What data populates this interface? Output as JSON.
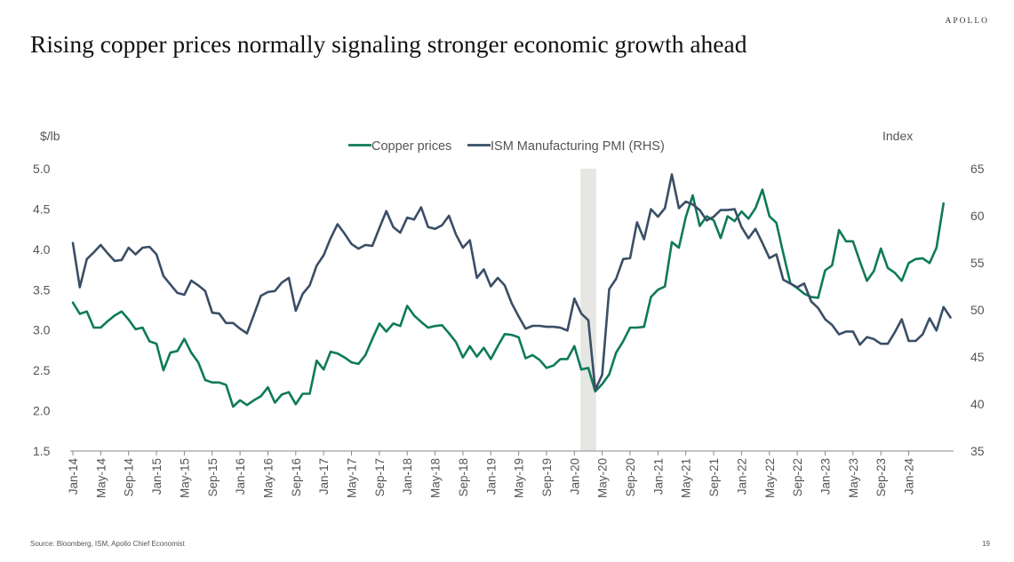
{
  "brand": "APOLLO",
  "title": "Rising copper prices normally signaling stronger economic growth ahead",
  "source": "Source: Bloomberg, ISM, Apollo Chief Economist",
  "page_number": "19",
  "colors": {
    "copper": "#0e7a5a",
    "pmi": "#3a4e66",
    "recession": "#e6e6e2"
  },
  "chart_data": {
    "type": "line",
    "title": "",
    "ylabel_left": "$/lb",
    "ylabel_right": "Index",
    "legend": [
      "Copper prices",
      "ISM Manufacturing PMI (RHS)"
    ],
    "legend_position": "top-center",
    "ylim_left": [
      1.5,
      5.0
    ],
    "yticks_left": [
      "1.5",
      "2.0",
      "2.5",
      "3.0",
      "3.5",
      "4.0",
      "4.5",
      "5.0"
    ],
    "ylim_right": [
      35,
      65
    ],
    "yticks_right": [
      "35",
      "40",
      "45",
      "50",
      "55",
      "60",
      "65"
    ],
    "xtick_labels": [
      "Jan-14",
      "May-14",
      "Sep-14",
      "Jan-15",
      "May-15",
      "Sep-15",
      "Jan-16",
      "May-16",
      "Sep-16",
      "Jan-17",
      "May-17",
      "Sep-17",
      "Jan-18",
      "May-18",
      "Sep-18",
      "Jan-19",
      "May-19",
      "Sep-19",
      "Jan-20",
      "May-20",
      "Sep-20",
      "Jan-21",
      "May-21",
      "Sep-21",
      "Jan-22",
      "May-22",
      "Sep-22",
      "Jan-23",
      "May-23",
      "Sep-23",
      "Jan-24"
    ],
    "shaded_period": [
      "2020-02",
      "2020-04"
    ],
    "x_start": "2014-01",
    "grid": false,
    "series": [
      {
        "name": "Copper prices",
        "axis": "left",
        "values": [
          3.34,
          3.2,
          3.23,
          3.03,
          3.03,
          3.11,
          3.18,
          3.23,
          3.13,
          3.01,
          3.03,
          2.86,
          2.83,
          2.5,
          2.72,
          2.74,
          2.89,
          2.72,
          2.6,
          2.38,
          2.35,
          2.35,
          2.32,
          2.05,
          2.13,
          2.07,
          2.13,
          2.18,
          2.29,
          2.1,
          2.2,
          2.23,
          2.08,
          2.21,
          2.21,
          2.62,
          2.51,
          2.73,
          2.71,
          2.66,
          2.6,
          2.58,
          2.69,
          2.89,
          3.08,
          2.98,
          3.08,
          3.05,
          3.3,
          3.18,
          3.1,
          3.03,
          3.05,
          3.06,
          2.96,
          2.85,
          2.66,
          2.8,
          2.67,
          2.78,
          2.64,
          2.8,
          2.95,
          2.94,
          2.91,
          2.65,
          2.69,
          2.63,
          2.53,
          2.56,
          2.64,
          2.64,
          2.8,
          2.51,
          2.53,
          2.24,
          2.33,
          2.45,
          2.72,
          2.86,
          3.03,
          3.03,
          3.04,
          3.41,
          3.5,
          3.54,
          4.09,
          4.02,
          4.4,
          4.67,
          4.29,
          4.41,
          4.36,
          4.14,
          4.41,
          4.35,
          4.47,
          4.38,
          4.51,
          4.74,
          4.41,
          4.33,
          3.95,
          3.58,
          3.52,
          3.45,
          3.41,
          3.4,
          3.74,
          3.8,
          4.24,
          4.1,
          4.1,
          3.85,
          3.61,
          3.73,
          4.01,
          3.77,
          3.71,
          3.61,
          3.83,
          3.88,
          3.89,
          3.83,
          4.02,
          4.57
        ]
      },
      {
        "name": "ISM Manufacturing PMI (RHS)",
        "axis": "right",
        "values": [
          57.1,
          52.4,
          55.4,
          56.1,
          56.9,
          56.0,
          55.2,
          55.3,
          56.6,
          55.9,
          56.6,
          56.7,
          55.9,
          53.6,
          52.7,
          51.8,
          51.6,
          53.1,
          52.6,
          52.0,
          49.7,
          49.6,
          48.6,
          48.6,
          48.0,
          47.5,
          49.5,
          51.5,
          51.9,
          52.0,
          52.9,
          53.4,
          49.9,
          51.7,
          52.6,
          54.7,
          55.8,
          57.6,
          59.1,
          58.1,
          57.0,
          56.5,
          56.9,
          56.8,
          58.7,
          60.5,
          58.8,
          58.2,
          59.8,
          59.6,
          60.9,
          58.8,
          58.6,
          59.0,
          60.0,
          58.0,
          56.6,
          57.4,
          53.4,
          54.3,
          52.5,
          53.4,
          52.6,
          50.7,
          49.3,
          48.0,
          48.3,
          48.3,
          48.2,
          48.2,
          48.1,
          47.8,
          51.2,
          49.6,
          48.9,
          41.5,
          43.1,
          52.2,
          53.3,
          55.4,
          55.5,
          59.3,
          57.5,
          60.7,
          59.9,
          60.8,
          64.4,
          60.8,
          61.5,
          61.2,
          60.6,
          59.5,
          59.9,
          60.6,
          60.6,
          60.7,
          58.8,
          57.6,
          58.6,
          57.1,
          55.5,
          55.9,
          53.2,
          52.8,
          52.4,
          52.8,
          50.9,
          50.2,
          49.0,
          48.4,
          47.4,
          47.7,
          47.7,
          46.3,
          47.1,
          46.9,
          46.4,
          46.4,
          47.6,
          49.0,
          46.7,
          46.7,
          47.4,
          49.1,
          47.8,
          50.3,
          49.2
        ]
      }
    ]
  }
}
